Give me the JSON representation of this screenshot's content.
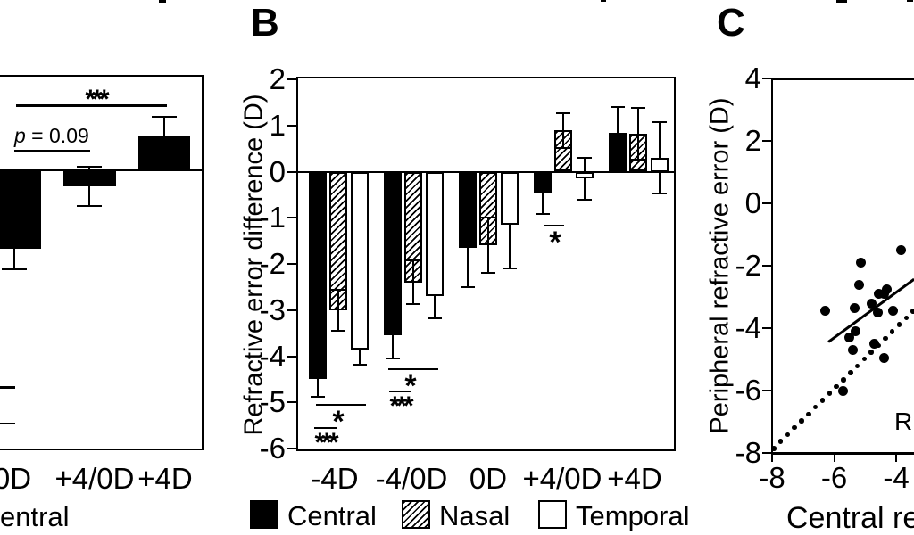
{
  "chart_data": [
    {
      "panel": "A",
      "type": "bar",
      "note": "panel cropped at left edge of screenshot",
      "categories": [
        "0D",
        "+4/0D",
        "+4D"
      ],
      "series": [
        {
          "name": "Central",
          "fill": "black",
          "values": [
            -2.17,
            -0.44,
            0.94
          ],
          "errors": [
            0.57,
            0.55,
            0.54
          ]
        }
      ],
      "ylim_visible": [
        -7.75,
        2.6
      ],
      "unlabeled_ytick_values": [
        -6,
        -7
      ],
      "significance": [
        {
          "label": "***",
          "from_category": "0D",
          "to_category": "+4D"
        },
        {
          "label": "p = 0.09",
          "from_category": "0D",
          "to_category": "+4/0D"
        }
      ],
      "legend_fragment": "entral"
    },
    {
      "panel": "B",
      "type": "bar",
      "categories": [
        "-4D",
        "-4/0D",
        "0D",
        "+4/0D",
        "+4D"
      ],
      "series": [
        {
          "name": "Central",
          "fill": "black",
          "values": [
            -4.5,
            -3.55,
            -1.65,
            -0.47,
            0.85
          ],
          "errors": [
            0.37,
            0.5,
            0.85,
            0.45,
            0.56
          ]
        },
        {
          "name": "Nasal",
          "fill": "hatched",
          "values": [
            -3.0,
            -2.4,
            -1.6,
            0.89,
            0.82
          ],
          "errors": [
            0.45,
            0.47,
            0.6,
            0.38,
            0.56
          ]
        },
        {
          "name": "Temporal",
          "fill": "white",
          "values": [
            -3.85,
            -2.7,
            -1.15,
            -0.15,
            0.3
          ],
          "errors": [
            0.33,
            0.47,
            0.95,
            0.45,
            0.77
          ]
        }
      ],
      "ylabel": "Refractive error difference (D)",
      "ylim": [
        -6,
        2
      ],
      "yticks": [
        2,
        1,
        0,
        -1,
        -2,
        -3,
        -4,
        -5,
        -6
      ],
      "grid": false,
      "legend_position": "bottom",
      "significance": [
        {
          "label": "*",
          "category": "-4D",
          "between": [
            "Central",
            "Temporal"
          ]
        },
        {
          "label": "***",
          "category": "-4D",
          "between": [
            "Central",
            "Nasal"
          ]
        },
        {
          "label": "*",
          "category": "-4/0D",
          "between": [
            "Central",
            "Temporal"
          ]
        },
        {
          "label": "***",
          "category": "-4/0D",
          "between": [
            "Central",
            "Nasal"
          ]
        },
        {
          "label": "*",
          "category": "+4/0D",
          "between": [
            "Central",
            "Nasal"
          ]
        }
      ]
    },
    {
      "panel": "C",
      "type": "scatter",
      "ylabel": "Peripheral refractive error (D)",
      "xlabel_visible": "Central re",
      "annotation": "R",
      "xlim_visible": [
        -8,
        -3.4
      ],
      "ylim": [
        -8,
        4
      ],
      "xticks": [
        -8,
        -6,
        -4
      ],
      "yticks": [
        4,
        2,
        0,
        -2,
        -4,
        -6,
        -8
      ],
      "points": [
        [
          -3.85,
          -1.5
        ],
        [
          -5.15,
          -1.9
        ],
        [
          -5.2,
          -2.6
        ],
        [
          -4.3,
          -2.75
        ],
        [
          -4.4,
          -2.9
        ],
        [
          -4.55,
          -2.9
        ],
        [
          -4.8,
          -3.2
        ],
        [
          -5.35,
          -3.35
        ],
        [
          -6.3,
          -3.45
        ],
        [
          -4.6,
          -3.5
        ],
        [
          -4.1,
          -3.45
        ],
        [
          -5.3,
          -4.1
        ],
        [
          -5.5,
          -4.3
        ],
        [
          -5.4,
          -4.7
        ],
        [
          -4.7,
          -4.5
        ],
        [
          -4.4,
          -4.95
        ],
        [
          -5.7,
          -6.0
        ]
      ],
      "identity_line": {
        "style": "dotted",
        "from": [
          -7.95,
          -7.85
        ],
        "to": [
          -3.45,
          -3.45
        ]
      },
      "fit_line": {
        "style": "solid",
        "from": [
          -6.2,
          -4.45
        ],
        "to": [
          -3.45,
          -2.45
        ]
      }
    }
  ]
}
